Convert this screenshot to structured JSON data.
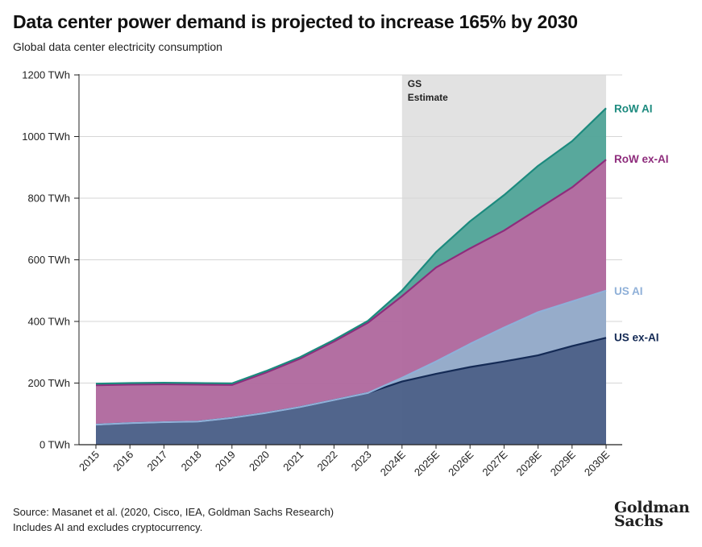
{
  "title": "Data center power demand is projected to increase 165% by 2030",
  "subtitle": "Global data center electricity consumption",
  "footer": {
    "source": "Source: Masanet et al. (2020, Cisco, IEA, Goldman Sachs Research)",
    "note": "Includes AI and excludes cryptocurrency."
  },
  "logo": {
    "line1": "Goldman",
    "line2": "Sachs"
  },
  "colors": {
    "us_ex_ai": "#4a5f87",
    "us_ai": "#8fa7c8",
    "row_ex_ai": "#b0699e",
    "row_ai": "#4ca396",
    "us_ex_ai_line": "#142a55",
    "us_ai_line": "#8fb0d8",
    "row_ex_ai_line": "#8e2c7c",
    "row_ai_line": "#1c8a7e",
    "estimate_shade": "#e2e2e2"
  },
  "chart_data": {
    "type": "area",
    "stacked": true,
    "title": "Data center power demand is projected to increase 165% by 2030",
    "subtitle": "Global data center electricity consumption",
    "xlabel": "",
    "ylabel": "",
    "ylim": [
      0,
      1200
    ],
    "ytick_values": [
      0,
      200,
      400,
      600,
      800,
      1000,
      1200
    ],
    "ytick_labels": [
      "0 TWh",
      "200 TWh",
      "400 TWh",
      "600 TWh",
      "800 TWh",
      "1000 TWh",
      "1200 TWh"
    ],
    "categories": [
      "2015",
      "2016",
      "2017",
      "2018",
      "2019",
      "2020",
      "2021",
      "2022",
      "2023",
      "2024E",
      "2025E",
      "2026E",
      "2027E",
      "2028E",
      "2029E",
      "2030E"
    ],
    "estimate_region": {
      "label_line1": "GS",
      "label_line2": "Estimate",
      "from": "2024E",
      "to": "2030E"
    },
    "series": [
      {
        "name": "US ex-AI",
        "label": "US ex-AI",
        "values": [
          65,
          70,
          73,
          75,
          87,
          103,
          122,
          145,
          168,
          205,
          230,
          252,
          270,
          290,
          320,
          347
        ]
      },
      {
        "name": "US AI",
        "label": "US AI",
        "values": [
          0,
          0,
          0,
          0,
          0,
          0,
          0,
          0,
          0,
          12,
          40,
          75,
          110,
          140,
          145,
          153
        ]
      },
      {
        "name": "RoW ex-AI",
        "label": "RoW ex-AI",
        "values": [
          128,
          125,
          123,
          120,
          107,
          131,
          157,
          190,
          228,
          265,
          305,
          310,
          315,
          335,
          370,
          425
        ]
      },
      {
        "name": "RoW AI",
        "label": "RoW AI",
        "values": [
          5,
          5,
          5,
          5,
          5,
          5,
          5,
          5,
          6,
          18,
          50,
          88,
          115,
          140,
          150,
          167
        ]
      }
    ]
  }
}
